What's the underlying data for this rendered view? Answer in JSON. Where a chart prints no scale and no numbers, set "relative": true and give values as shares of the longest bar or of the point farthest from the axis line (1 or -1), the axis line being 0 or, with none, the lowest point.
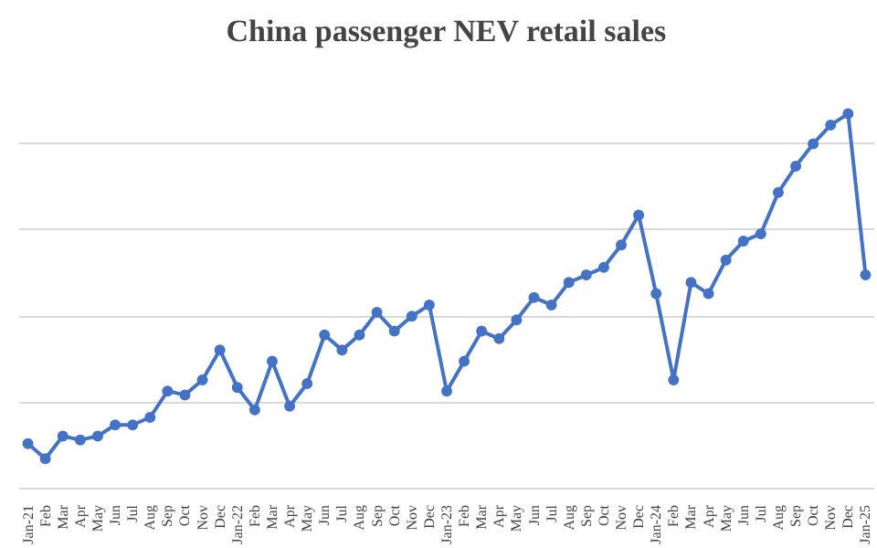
{
  "chart_data": {
    "type": "line",
    "title": "China passenger NEV retail sales",
    "relative": true,
    "grid": "y",
    "marker": "circle",
    "line_style": "solid",
    "categories": [
      "Jan-21",
      "Feb",
      "Mar",
      "Apr",
      "May",
      "Jun",
      "Jul",
      "Aug",
      "Sep",
      "Oct",
      "Nov",
      "Dec",
      "Jan-22",
      "Feb",
      "Mar",
      "Apr",
      "May",
      "Jun",
      "Jul",
      "Aug",
      "Sep",
      "Oct",
      "Nov",
      "Dec",
      "Jan-23",
      "Feb",
      "Mar",
      "Apr",
      "May",
      "Jun",
      "Jul",
      "Aug",
      "Sep",
      "Oct",
      "Nov",
      "Dec",
      "Jan-24",
      "Feb",
      "Mar",
      "Apr",
      "May",
      "Jun",
      "Jul",
      "Aug",
      "Sep",
      "Oct",
      "Nov",
      "Dec",
      "Jan-25"
    ],
    "series": [
      {
        "color": "#4472c4",
        "values": [
          0.12,
          0.08,
          0.14,
          0.13,
          0.14,
          0.17,
          0.17,
          0.19,
          0.26,
          0.25,
          0.29,
          0.37,
          0.27,
          0.21,
          0.34,
          0.22,
          0.28,
          0.41,
          0.37,
          0.41,
          0.47,
          0.42,
          0.46,
          0.49,
          0.26,
          0.34,
          0.42,
          0.4,
          0.45,
          0.51,
          0.49,
          0.55,
          0.57,
          0.59,
          0.65,
          0.73,
          0.52,
          0.29,
          0.55,
          0.52,
          0.61,
          0.66,
          0.68,
          0.79,
          0.86,
          0.92,
          0.97,
          1,
          0.57
        ]
      }
    ]
  }
}
